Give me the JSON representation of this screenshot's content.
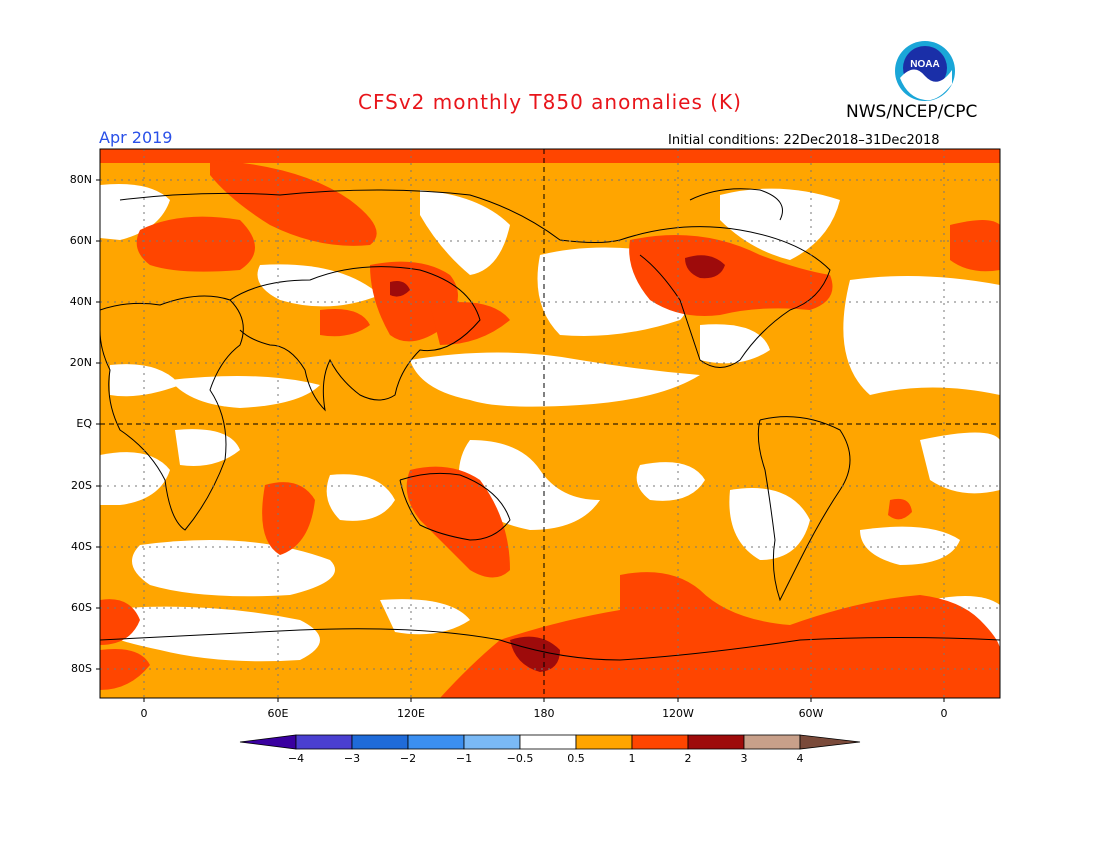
{
  "header": {
    "title": "CFSv2 monthly T850 anomalies (K)",
    "agency": "NWS/NCEP/CPC",
    "logo_text": "NOAA",
    "month": "Apr 2019",
    "initial_conditions": "Initial conditions: 22Dec2018–31Dec2018"
  },
  "colors": {
    "title": "#e8151b",
    "month": "#2a50e8",
    "band_05_1": "#ffa500",
    "band_1_2": "#ff4500",
    "band_2_3": "#9e0b0b",
    "neutral": "#ffffff",
    "land_outline": "#000000"
  },
  "lat_labels": [
    "80N",
    "60N",
    "40N",
    "20N",
    "EQ",
    "20S",
    "40S",
    "60S",
    "80S"
  ],
  "lon_labels": [
    "0",
    "60E",
    "120E",
    "180",
    "120W",
    "60W",
    "0"
  ],
  "legend": {
    "labels": [
      "−4",
      "−3",
      "−2",
      "−1",
      "−0.5",
      "0.5",
      "1",
      "2",
      "3",
      "4"
    ],
    "colors": [
      "#3a00a0",
      "#4a3fd0",
      "#1f6bd9",
      "#3b8ff0",
      "#7ab9f5",
      "#ffffff",
      "#ffa500",
      "#ff4500",
      "#9e0b0b",
      "#c8a08a",
      "#7a4a3a"
    ]
  }
}
